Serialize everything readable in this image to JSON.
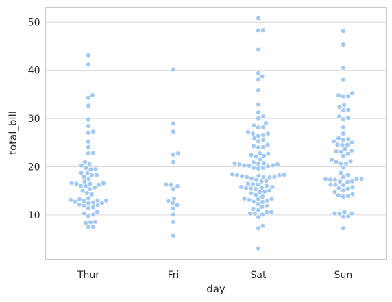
{
  "chart_data": {
    "type": "scatter",
    "subtype": "swarm",
    "title": "",
    "xlabel": "day",
    "ylabel": "total_bill",
    "categories": [
      "Thur",
      "Fri",
      "Sat",
      "Sun"
    ],
    "ylim": [
      1,
      53
    ],
    "yticks": [
      10,
      20,
      30,
      40,
      50
    ],
    "grid": "horizontal",
    "color": "#a1c9f4",
    "series": [
      {
        "category": "Thur",
        "values": [
          7.51,
          7.56,
          8.35,
          8.52,
          8.58,
          9.78,
          10.07,
          10.34,
          10.65,
          11.38,
          11.59,
          11.87,
          12.03,
          12.16,
          12.43,
          12.48,
          12.6,
          12.74,
          12.9,
          13.0,
          13.03,
          13.13,
          13.27,
          13.51,
          14.26,
          14.52,
          15.01,
          15.38,
          15.69,
          15.95,
          16.0,
          16.27,
          16.43,
          16.47,
          16.58,
          16.66,
          16.93,
          17.47,
          17.92,
          18.26,
          18.29,
          18.71,
          18.78,
          19.44,
          19.49,
          19.77,
          20.27,
          20.53,
          21.01,
          22.82,
          22.76,
          24.08,
          25.21,
          27.05,
          27.28,
          28.44,
          29.8,
          32.68,
          34.3,
          34.83,
          41.19,
          43.11
        ]
      },
      {
        "category": "Fri",
        "values": [
          5.75,
          8.58,
          10.09,
          11.35,
          12.03,
          12.46,
          12.9,
          13.42,
          15.38,
          15.98,
          16.27,
          16.32,
          21.01,
          22.49,
          22.75,
          27.28,
          28.97,
          40.17
        ]
      },
      {
        "category": "Sat",
        "values": [
          3.07,
          7.25,
          7.74,
          9.55,
          10.07,
          10.29,
          10.33,
          10.59,
          10.63,
          11.02,
          11.24,
          11.69,
          11.87,
          12.26,
          12.69,
          12.76,
          13.0,
          13.13,
          13.28,
          13.39,
          13.42,
          13.81,
          14.15,
          14.48,
          14.78,
          14.83,
          15.04,
          15.36,
          15.48,
          15.53,
          15.69,
          15.81,
          15.82,
          16.04,
          16.29,
          16.4,
          16.45,
          16.97,
          17.07,
          17.26,
          17.59,
          17.78,
          17.82,
          17.89,
          17.92,
          18.04,
          18.15,
          18.24,
          18.28,
          18.35,
          18.43,
          19.65,
          19.77,
          19.81,
          20.08,
          20.23,
          20.29,
          20.29,
          20.45,
          20.49,
          20.65,
          20.69,
          20.76,
          20.9,
          21.58,
          22.12,
          22.23,
          22.42,
          22.67,
          22.76,
          24.01,
          24.06,
          24.27,
          24.55,
          25.29,
          25.56,
          25.89,
          26.41,
          26.59,
          26.86,
          26.88,
          27.18,
          28.15,
          28.17,
          28.55,
          29.03,
          30.06,
          30.4,
          31.27,
          32.9,
          35.83,
          38.07,
          38.73,
          39.42,
          44.3,
          48.27,
          48.33,
          50.81
        ]
      },
      {
        "category": "Sun",
        "values": [
          7.25,
          9.6,
          9.68,
          10.29,
          10.33,
          10.34,
          10.63,
          13.81,
          13.94,
          14.07,
          14.31,
          14.73,
          15.04,
          15.42,
          15.53,
          15.77,
          16.21,
          16.29,
          16.31,
          16.82,
          16.93,
          16.99,
          17.29,
          17.31,
          17.46,
          17.46,
          17.51,
          17.81,
          18.29,
          18.69,
          19.82,
          20.65,
          20.69,
          21.01,
          21.16,
          21.5,
          22.23,
          22.67,
          23.1,
          23.17,
          23.33,
          23.68,
          24.52,
          24.55,
          24.59,
          25.0,
          25.28,
          25.56,
          25.71,
          25.89,
          26.88,
          28.17,
          29.85,
          30.14,
          30.4,
          31.71,
          31.85,
          32.4,
          32.83,
          34.63,
          34.65,
          34.81,
          35.26,
          38.01,
          40.55,
          45.35,
          48.17
        ]
      }
    ]
  }
}
